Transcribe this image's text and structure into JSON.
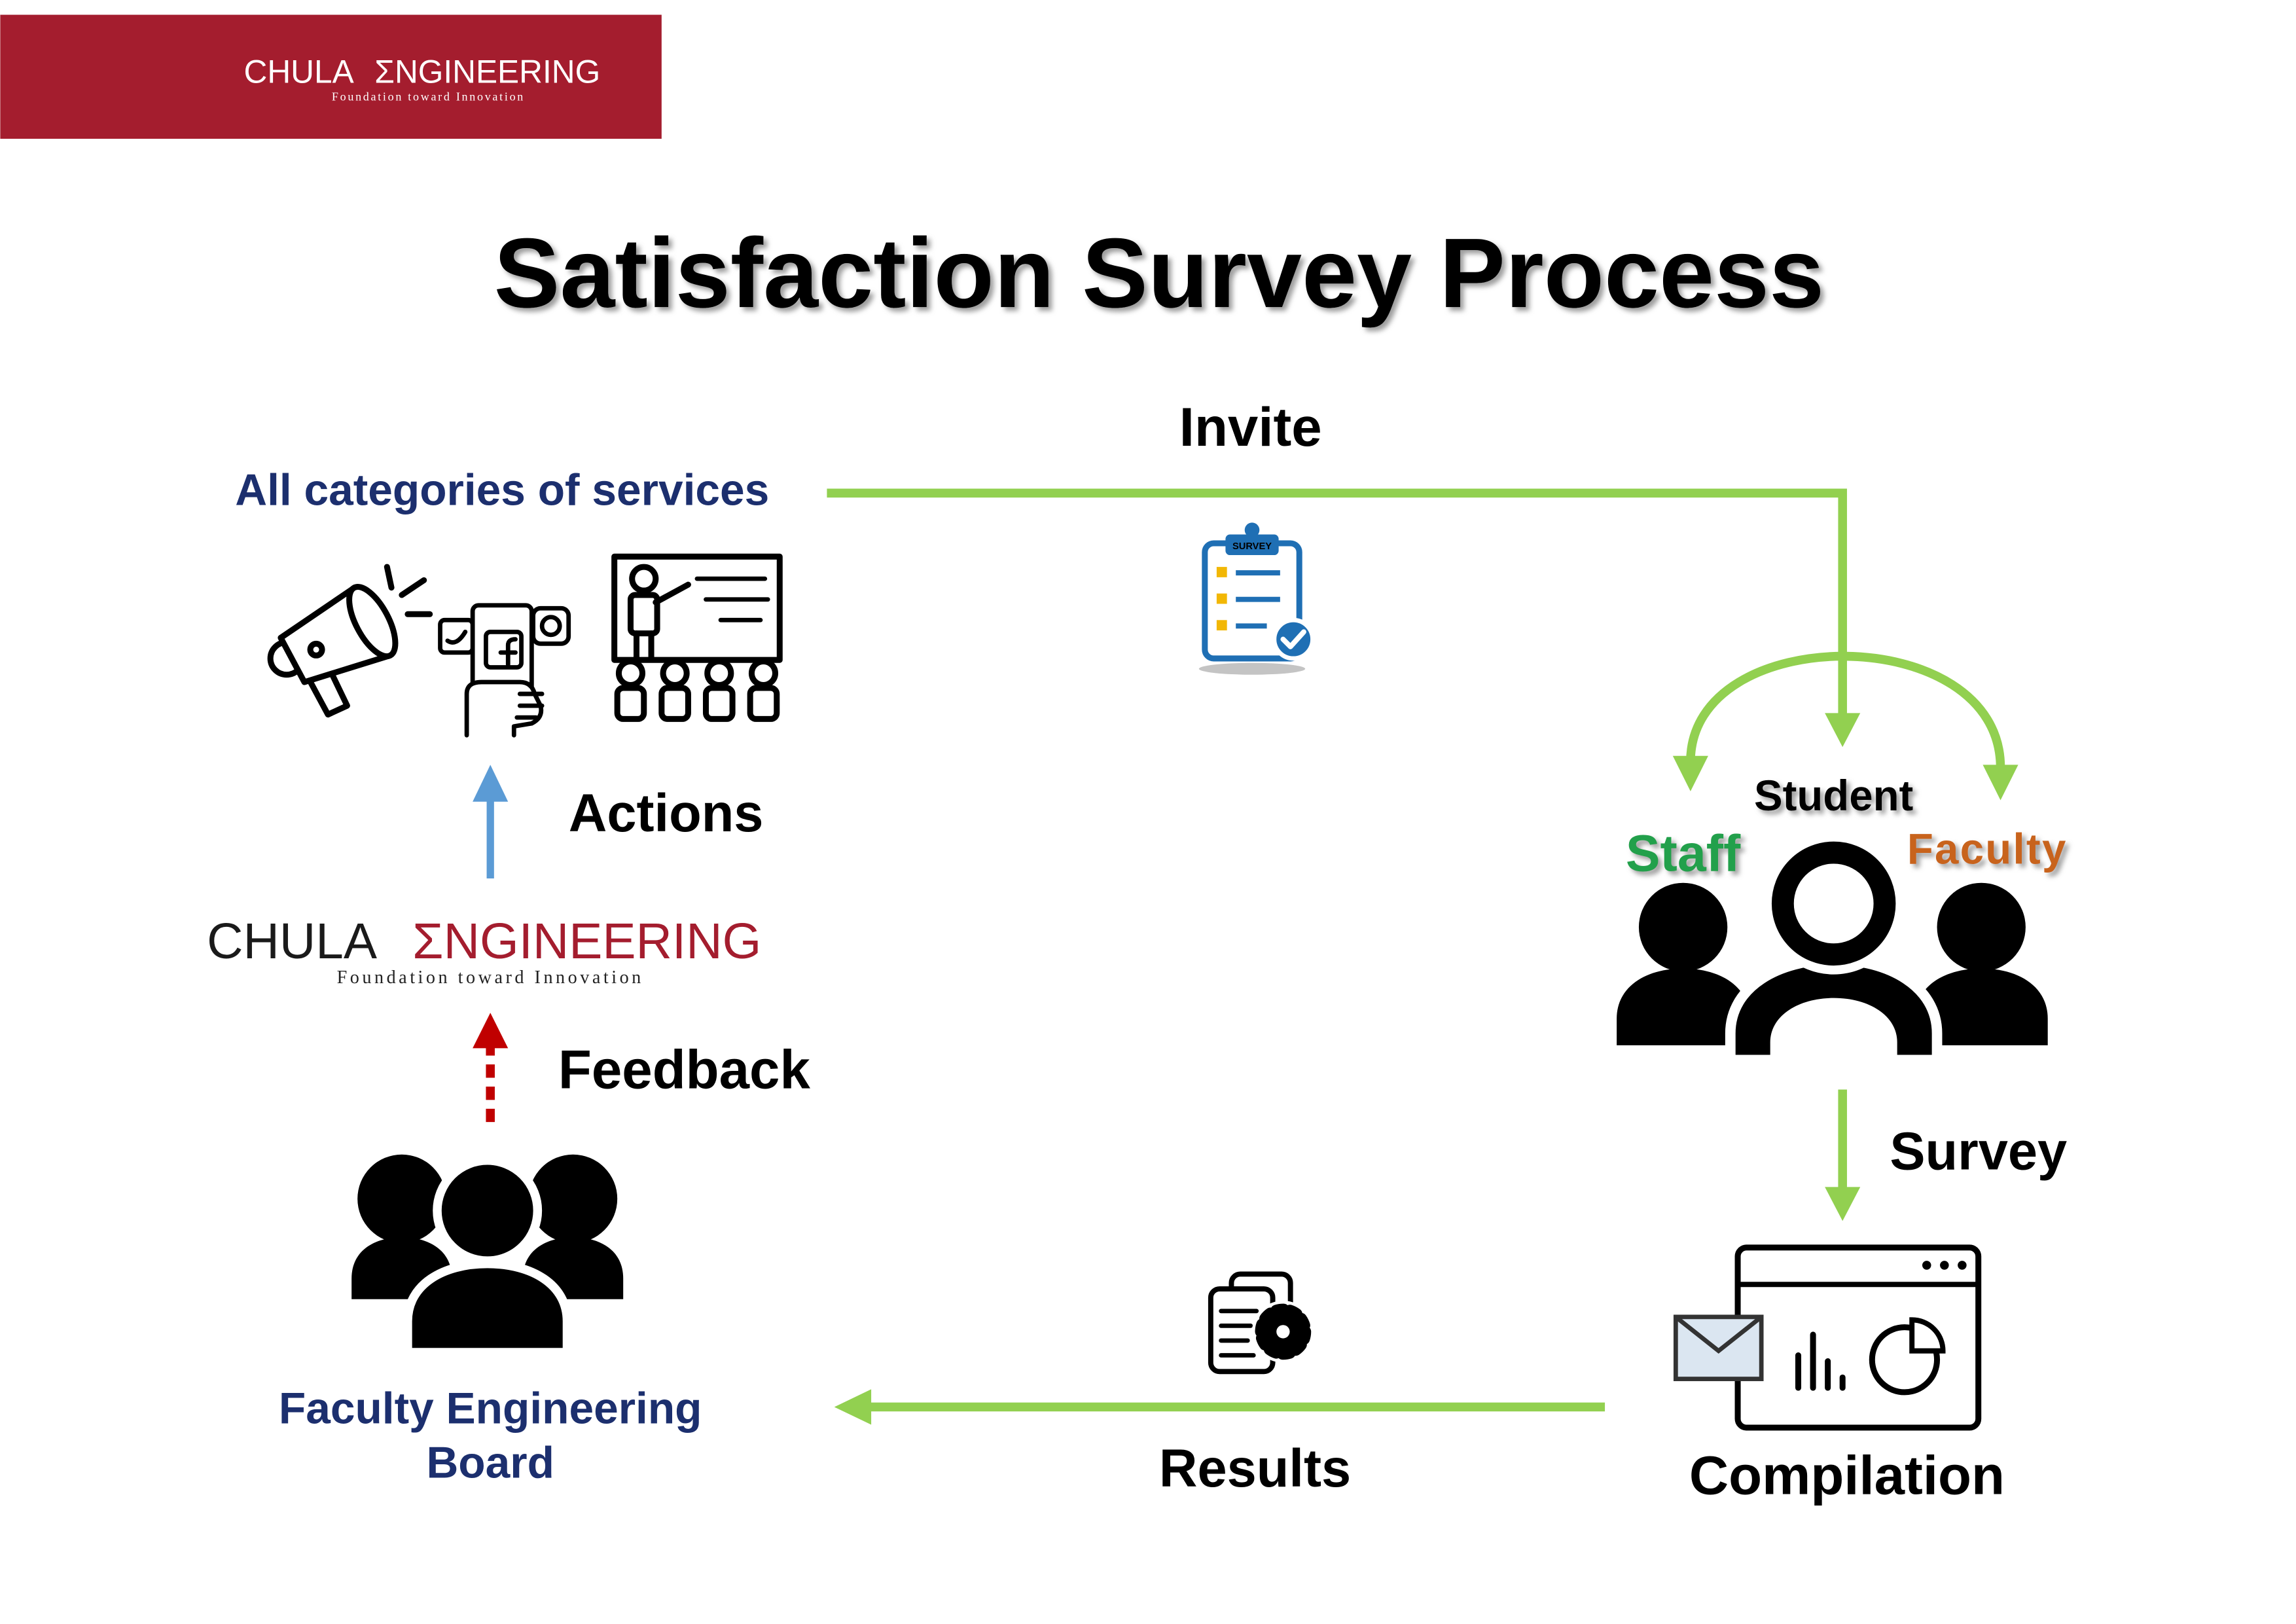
{
  "header": {
    "logo": {
      "name_left": "CHULA",
      "name_right": "ΣNGINEERING",
      "tagline": "Foundation toward Innovation"
    }
  },
  "title": "Satisfaction Survey Process",
  "services": {
    "label": "All categories of services",
    "icons": [
      "megaphone-icon",
      "social-media-hand-icon",
      "presentation-audience-icon"
    ]
  },
  "invite": {
    "label": "Invite",
    "icon": "survey-clipboard-icon",
    "badge": "SURVEY"
  },
  "actions": {
    "label": "Actions",
    "arrow": "solid-up-arrow"
  },
  "center_logo": {
    "name_left": "CHULA",
    "name_right": "ΣNGINEERING",
    "tagline": "Foundation toward Innovation"
  },
  "feedback": {
    "label": "Feedback",
    "arrow": "dotted-up-arrow"
  },
  "board": {
    "label_lines": [
      "Faculty Engineering",
      "Board"
    ],
    "icon": "group-people-icon"
  },
  "respondents": {
    "student": "Student",
    "staff": "Staff",
    "faculty": "Faculty",
    "icon": "three-people-icon"
  },
  "survey": {
    "label": "Survey",
    "arrow": "down-arrow"
  },
  "compilation": {
    "label": "Compilation",
    "icon": "dashboard-window-icon"
  },
  "results": {
    "label": "Results",
    "icon": "documents-gear-icon",
    "arrow": "left-arrow"
  },
  "colors": {
    "brand_red": "#a41d2e",
    "flow_green": "#92d050",
    "navy": "#1c2f6e",
    "action_blue": "#5b9bd5",
    "feedback_red": "#c00000",
    "staff_green": "#22a04b",
    "faculty_orange": "#c8641c",
    "survey_blue": "#1f6fb4",
    "survey_yellow": "#f2b705",
    "icon_black": "#000000"
  }
}
